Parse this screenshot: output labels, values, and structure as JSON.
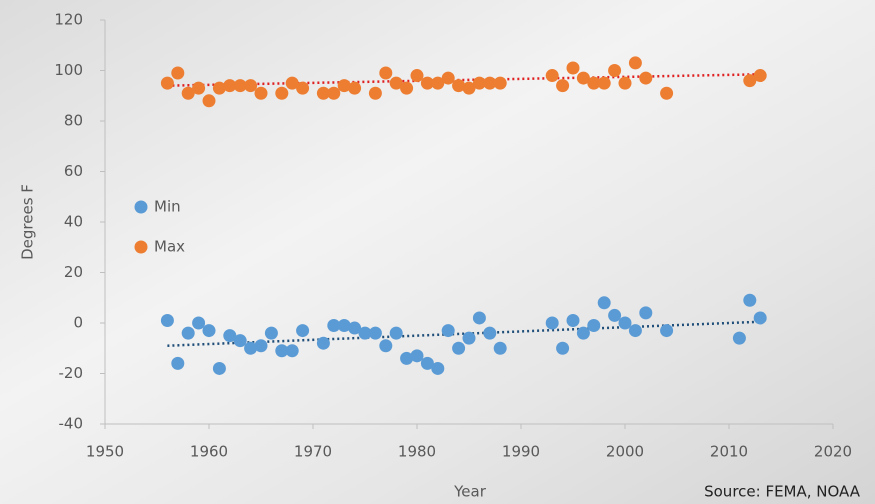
{
  "chart_data": {
    "type": "scatter",
    "xlabel": "Year",
    "ylabel": "Degrees F",
    "source": "Source: FEMA, NOAA",
    "xlim": [
      1950,
      2020
    ],
    "xticks": [
      1950,
      1960,
      1970,
      1980,
      1990,
      2000,
      2010,
      2020
    ],
    "ylim": [
      -40,
      120
    ],
    "yticks": [
      -40,
      -20,
      0,
      20,
      40,
      60,
      80,
      100,
      120
    ],
    "legend": "left",
    "series": [
      {
        "name": "Min",
        "color": "#5b9bd5",
        "trend_color": "#1f4e79",
        "x": [
          1956,
          1957,
          1958,
          1959,
          1960,
          1961,
          1962,
          1963,
          1964,
          1965,
          1966,
          1967,
          1968,
          1969,
          1971,
          1972,
          1973,
          1974,
          1975,
          1976,
          1977,
          1978,
          1979,
          1980,
          1981,
          1982,
          1983,
          1984,
          1985,
          1986,
          1987,
          1988,
          1993,
          1994,
          1995,
          1996,
          1997,
          1998,
          1999,
          2000,
          2001,
          2002,
          2004,
          2011,
          2012,
          2013
        ],
        "values": [
          1,
          -16,
          -4,
          0,
          -3,
          -18,
          -5,
          -7,
          -10,
          -9,
          -4,
          -11,
          -11,
          -3,
          -8,
          -1,
          -1,
          -2,
          -4,
          -4,
          -9,
          -4,
          -14,
          -13,
          -16,
          -18,
          -3,
          -10,
          -6,
          2,
          -4,
          -10,
          0,
          -10,
          1,
          -4,
          -1,
          8,
          3,
          0,
          -3,
          4,
          -3,
          -6,
          9,
          2
        ],
        "trend": {
          "x": [
            1956,
            2013
          ],
          "values": [
            -9,
            0.5
          ]
        }
      },
      {
        "name": "Max",
        "color": "#ed7d31",
        "trend_color": "#e02020",
        "x": [
          1956,
          1957,
          1958,
          1959,
          1960,
          1961,
          1962,
          1963,
          1964,
          1965,
          1967,
          1968,
          1969,
          1971,
          1972,
          1973,
          1974,
          1976,
          1977,
          1978,
          1979,
          1980,
          1981,
          1982,
          1983,
          1984,
          1985,
          1986,
          1987,
          1988,
          1993,
          1994,
          1995,
          1996,
          1997,
          1998,
          1999,
          2000,
          2001,
          2002,
          2004,
          2012,
          2013
        ],
        "values": [
          95,
          99,
          91,
          93,
          88,
          93,
          94,
          94,
          94,
          91,
          91,
          95,
          93,
          91,
          91,
          94,
          93,
          91,
          99,
          95,
          93,
          98,
          95,
          95,
          97,
          94,
          93,
          95,
          95,
          95,
          98,
          94,
          101,
          97,
          95,
          95,
          100,
          95,
          103,
          97,
          91,
          96,
          98
        ],
        "trend": {
          "x": [
            1956,
            2013
          ],
          "values": [
            94,
            98.5
          ]
        }
      }
    ]
  }
}
